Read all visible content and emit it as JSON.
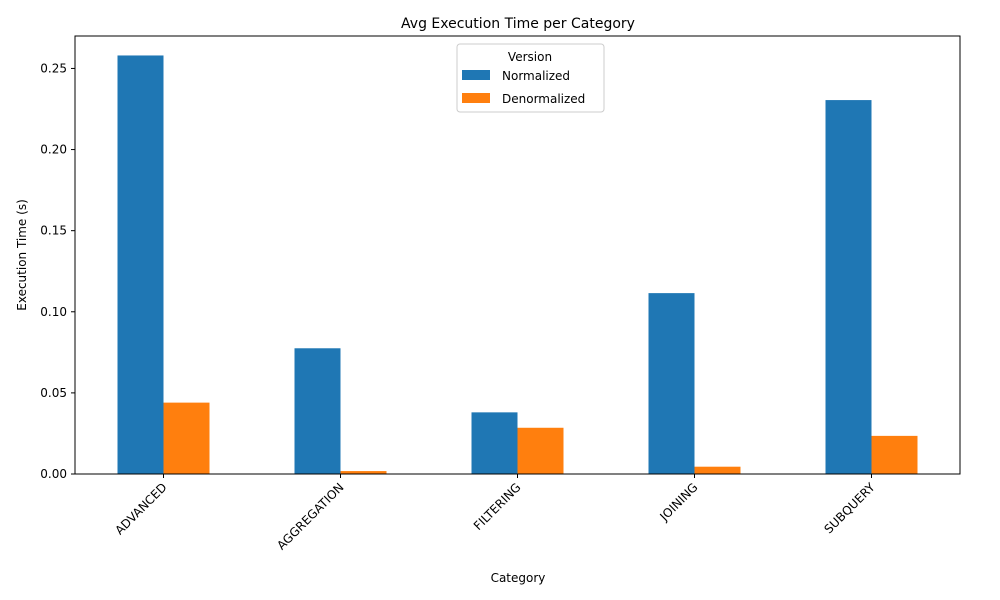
{
  "chart_data": {
    "type": "bar",
    "title": "Avg Execution Time per Category",
    "xlabel": "Category",
    "ylabel": "Execution Time (s)",
    "categories": [
      "ADVANCED",
      "AGGREGATION",
      "FILTERING",
      "JOINING",
      "SUBQUERY"
    ],
    "series": [
      {
        "name": "Normalized",
        "values": [
          0.258,
          0.0775,
          0.038,
          0.1115,
          0.2305
        ],
        "color": "#1f77b4"
      },
      {
        "name": "Denormalized",
        "values": [
          0.044,
          0.0018,
          0.0285,
          0.0045,
          0.0235
        ],
        "color": "#ff7f0e"
      }
    ],
    "ylim": [
      0,
      0.27
    ],
    "yticks": [
      0.0,
      0.05,
      0.1,
      0.15,
      0.2,
      0.25
    ],
    "ytick_labels": [
      "0.00",
      "0.05",
      "0.10",
      "0.15",
      "0.20",
      "0.25"
    ],
    "legend": {
      "title": "Version",
      "placement": "upper center"
    },
    "grid": false
  }
}
